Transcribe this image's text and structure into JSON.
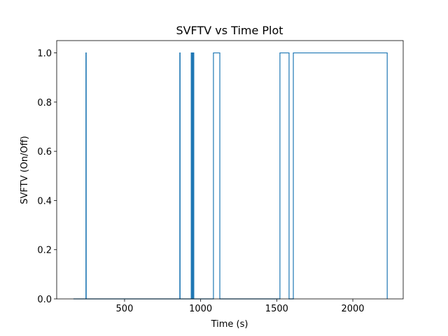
{
  "chart_data": {
    "type": "line",
    "step": "post",
    "title": "SVFTV vs Time Plot",
    "x_label": "Time (s)",
    "y_label": "SVFTV (On/Off)",
    "x": [
      164,
      246,
      248,
      863,
      865,
      938,
      940,
      943,
      945,
      948,
      950,
      953,
      955,
      1084,
      1126,
      1521,
      1581,
      1609,
      2226
    ],
    "series": [
      {
        "color": "#1f77b4",
        "values": [
          0,
          1,
          0,
          1,
          0,
          1,
          0,
          1,
          0,
          1,
          0,
          1,
          0,
          1,
          0,
          1,
          0,
          1,
          0
        ]
      }
    ],
    "xlim": [
      54,
      2331
    ],
    "ylim": [
      0,
      1.05
    ],
    "xticks": [
      500,
      1000,
      1500,
      2000
    ],
    "yticks": [
      {
        "value": 0,
        "label": "0.0"
      },
      0.2,
      0.4,
      0.6,
      0.8,
      {
        "value": 1,
        "label": "1.0"
      }
    ]
  }
}
